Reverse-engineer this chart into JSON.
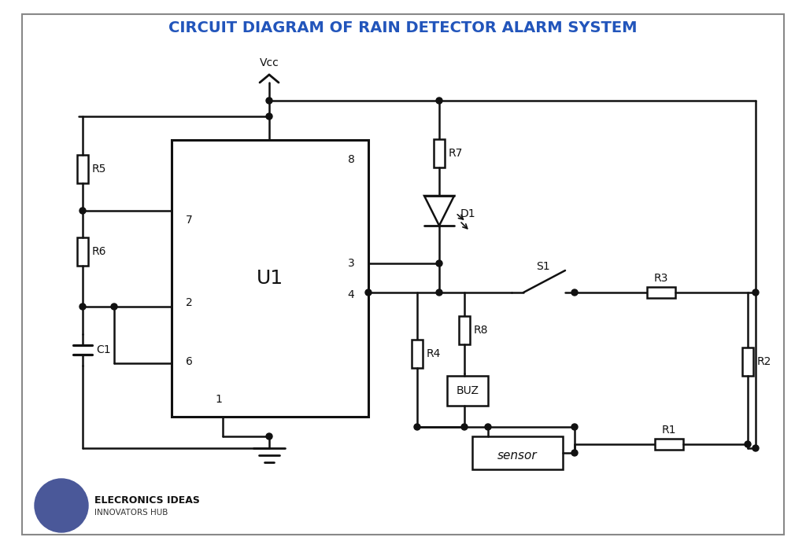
{
  "title": "CIRCUIT DIAGRAM OF RAIN DETECTOR ALARM SYSTEM",
  "title_color": "#2255bb",
  "bg_color": "#ffffff",
  "line_color": "#111111",
  "logo_circle_color": "#4a5899",
  "logo_text": "ELECRONICS IDEAS",
  "logo_subtext": "INNOVATORS HUB"
}
